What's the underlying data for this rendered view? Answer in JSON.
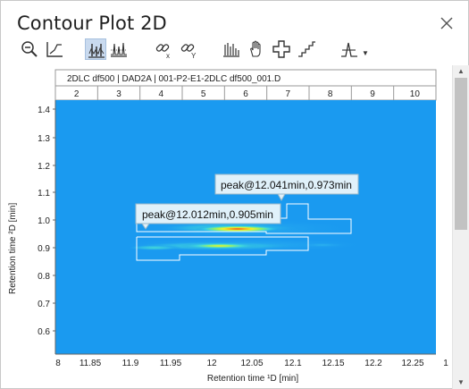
{
  "window": {
    "title": "Contour Plot 2D",
    "close_icon": "close-icon"
  },
  "toolbar": {
    "items": [
      {
        "icon": "zoom-out-icon"
      },
      {
        "icon": "axis-scale-icon"
      },
      {
        "icon": "contour-view-icon",
        "active": true
      },
      {
        "icon": "peak-view-icon"
      },
      {
        "icon": "unlink-x-icon"
      },
      {
        "icon": "unlink-y-icon"
      },
      {
        "icon": "spectrum-icon"
      },
      {
        "icon": "pan-hand-icon"
      },
      {
        "icon": "crosshair-icon"
      },
      {
        "icon": "step-icon"
      },
      {
        "icon": "peak-label-dropdown-icon"
      }
    ]
  },
  "chart_data": {
    "type": "heatmap",
    "header_label": "2DLC df500 | DAD2A | 001-P2-E1-2DLC df500_001.D",
    "fractions": [
      "2",
      "3",
      "4",
      "5",
      "6",
      "7",
      "8",
      "9",
      "10"
    ],
    "xlabel": "Retention time ¹D [min]",
    "ylabel": "Retention time ²D [min]",
    "x_ticks": [
      "8",
      "11.85",
      "11.9",
      "11.95",
      "12",
      "12.05",
      "12.1",
      "12.15",
      "12.2",
      "12.25",
      "1"
    ],
    "y_ticks": [
      "1.4",
      "1.3",
      "1.2",
      "1.1",
      "1.0",
      "0.9",
      "0.8",
      "0.7",
      "0.6"
    ],
    "xlim": [
      11.8,
      12.3
    ],
    "ylim": [
      0.5,
      1.45
    ],
    "colors": {
      "background": "#1a9af0",
      "mid": "#35d1e8",
      "hot": "#e63b1d"
    },
    "peaks": [
      {
        "x": 12.041,
        "y": 0.973,
        "label": "peak@12.041min,0.973min"
      },
      {
        "x": 12.012,
        "y": 0.905,
        "label": "peak@12.012min,0.905min"
      }
    ]
  }
}
